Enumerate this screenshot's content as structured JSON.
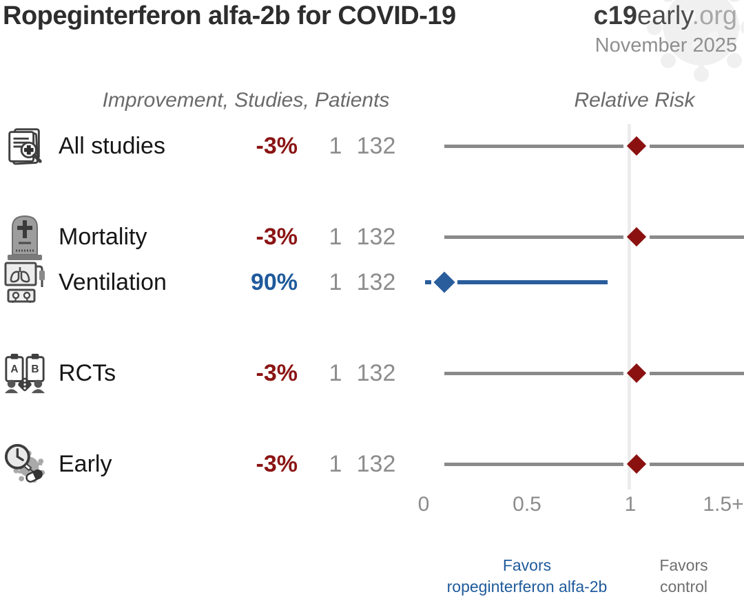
{
  "header": {
    "title": "Ropeginterferon alfa-2b for COVID-19",
    "site_bold": "c19",
    "site_mid": "early",
    "site_suffix": ".org",
    "date": "November 2025"
  },
  "columns": {
    "left_header": "Improvement, Studies, Patients",
    "right_header": "Relative Risk"
  },
  "rows": [
    {
      "label": "All studies",
      "improvement": "-3%",
      "studies": "1",
      "patients": "132",
      "sentiment": "negative"
    },
    {
      "label": "Mortality",
      "improvement": "-3%",
      "studies": "1",
      "patients": "132",
      "sentiment": "negative"
    },
    {
      "label": "Ventilation",
      "improvement": "90%",
      "studies": "1",
      "patients": "132",
      "sentiment": "positive"
    },
    {
      "label": "RCTs",
      "improvement": "-3%",
      "studies": "1",
      "patients": "132",
      "sentiment": "negative"
    },
    {
      "label": "Early",
      "improvement": "-3%",
      "studies": "1",
      "patients": "132",
      "sentiment": "negative"
    }
  ],
  "axis": {
    "ticks": [
      "0",
      "0.5",
      "1",
      "1.5+"
    ]
  },
  "footer": {
    "favors_left_line1": "Favors",
    "favors_left_line2": "ropeginterferon alfa-2b",
    "favors_right_line1": "Favors",
    "favors_right_line2": "control"
  },
  "colors": {
    "negative": "#8b1414",
    "positive": "#1f5a9b",
    "negative_marker": "#8b1111",
    "positive_marker": "#2a5d9c",
    "line_gray": "#8a8a8a",
    "refline": "#ececec",
    "muted_text": "#8c8c8c"
  },
  "chart_data": {
    "type": "scatter",
    "subtype": "forest-plot",
    "title": "Ropeginterferon alfa-2b for COVID-19",
    "xlabel": "Relative Risk",
    "x_ticks": [
      0,
      0.5,
      1,
      1.5
    ],
    "x_tick_labels": [
      "0",
      "0.5",
      "1",
      "1.5+"
    ],
    "xlim": [
      0,
      1.55
    ],
    "reference_line_x": 1,
    "legend_note_left": "Favors ropeginterferon alfa-2b",
    "legend_note_right": "Favors control",
    "series": [
      {
        "name": "All studies",
        "improvement_pct": -3,
        "studies": 1,
        "patients": 132,
        "relative_risk": 1.03,
        "ci_lower": 0.1,
        "ci_upper": 1.8,
        "ci_upper_truncated": true,
        "color": "#8b1111"
      },
      {
        "name": "Mortality",
        "improvement_pct": -3,
        "studies": 1,
        "patients": 132,
        "relative_risk": 1.03,
        "ci_lower": 0.1,
        "ci_upper": 1.8,
        "ci_upper_truncated": true,
        "color": "#8b1111"
      },
      {
        "name": "Ventilation",
        "improvement_pct": 90,
        "studies": 1,
        "patients": 132,
        "relative_risk": 0.1,
        "ci_lower": 0.005,
        "ci_upper": 0.89,
        "ci_upper_truncated": false,
        "color": "#2a5d9c"
      },
      {
        "name": "RCTs",
        "improvement_pct": -3,
        "studies": 1,
        "patients": 132,
        "relative_risk": 1.03,
        "ci_lower": 0.1,
        "ci_upper": 1.8,
        "ci_upper_truncated": true,
        "color": "#8b1111"
      },
      {
        "name": "Early",
        "improvement_pct": -3,
        "studies": 1,
        "patients": 132,
        "relative_risk": 1.03,
        "ci_lower": 0.1,
        "ci_upper": 1.8,
        "ci_upper_truncated": true,
        "color": "#8b1111"
      }
    ]
  }
}
